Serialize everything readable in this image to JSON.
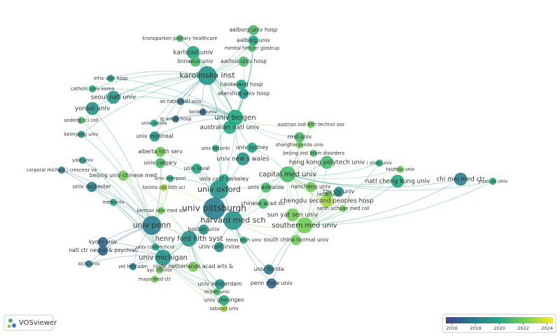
{
  "nodes": [
    {
      "label": "karolinska inst",
      "year": 2019,
      "size": 5
    },
    {
      "label": "univ bergen",
      "year": 2020,
      "size": 4
    },
    {
      "label": "australian natl univ",
      "year": 2020,
      "size": 3
    },
    {
      "label": "univ oxford",
      "year": 2019,
      "size": 5
    },
    {
      "label": "univ pittsburgh",
      "year": 2018,
      "size": 6
    },
    {
      "label": "harvard med sch",
      "year": 2019,
      "size": 5
    },
    {
      "label": "univ penn",
      "year": 2018,
      "size": 5
    },
    {
      "label": "henry ford hlth syst",
      "year": 2019,
      "size": 4
    },
    {
      "label": "univ michigan",
      "year": 2019,
      "size": 4
    },
    {
      "label": "capital med univ",
      "year": 2021,
      "size": 4
    },
    {
      "label": "hong kong polytech univ",
      "year": 2021,
      "size": 3
    },
    {
      "label": "chengdu second peoples hosp",
      "year": 2023,
      "size": 3
    },
    {
      "label": "southern med univ",
      "year": 2022,
      "size": 4
    },
    {
      "label": "sun yat sen univ",
      "year": 2022,
      "size": 3
    },
    {
      "label": "south china normal univ",
      "year": 2022,
      "size": 2
    },
    {
      "label": "natl cheng kung univ",
      "year": 2020,
      "size": 3
    },
    {
      "label": "chi mei med ctr",
      "year": 2018,
      "size": 3
    },
    {
      "label": "karlstad univ",
      "year": 2020,
      "size": 3
    },
    {
      "label": "linnaeus univ",
      "year": 2021,
      "size": 2
    },
    {
      "label": "aalborg univ hosp",
      "year": 2021,
      "size": 2
    },
    {
      "label": "aalborg univ",
      "year": 2020,
      "size": 2
    },
    {
      "label": "mental hlth ctr glostrup",
      "year": 2021,
      "size": 1
    },
    {
      "label": "aarhus univ hosp",
      "year": 2021,
      "size": 2
    },
    {
      "label": "kronoparken primary healthcare",
      "year": 2021,
      "size": 1
    },
    {
      "label": "haukeland hosp",
      "year": 2020,
      "size": 2
    },
    {
      "label": "akershus univ hosp",
      "year": 2019,
      "size": 2
    },
    {
      "label": "seoul natl univ",
      "year": 2019,
      "size": 3
    },
    {
      "label": "inha univ hosp",
      "year": 2019,
      "size": 1
    },
    {
      "label": "catholic univ korea",
      "year": 2020,
      "size": 1
    },
    {
      "label": "yonsei univ",
      "year": 2019,
      "size": 3
    },
    {
      "label": "andong sci coll",
      "year": 2021,
      "size": 1
    },
    {
      "label": "keimyung univ",
      "year": 2019,
      "size": 1
    },
    {
      "label": "univ montreal",
      "year": 2019,
      "size": 2
    },
    {
      "label": "univ aquila",
      "year": 2020,
      "size": 1
    },
    {
      "label": "konkuk univ",
      "year": 2017,
      "size": 1
    },
    {
      "label": "an najah natl univ",
      "year": 2017,
      "size": 1
    },
    {
      "label": "st anton hosp",
      "year": 2017,
      "size": 1
    },
    {
      "label": "alberta hlth serv",
      "year": 2022,
      "size": 2
    },
    {
      "label": "univ calgary",
      "year": 2021,
      "size": 2
    },
    {
      "label": "univ laval",
      "year": 2020,
      "size": 2
    },
    {
      "label": "fatima coll hlth sci",
      "year": 2023,
      "size": 1
    },
    {
      "label": "univ liverpool",
      "year": 2020,
      "size": 1
    },
    {
      "label": "beijing univ chinese med",
      "year": 2022,
      "size": 2
    },
    {
      "label": "yale univ",
      "year": 2019,
      "size": 1
    },
    {
      "label": "corporal michael j crescenz va",
      "year": 2018,
      "size": 1
    },
    {
      "label": "univ rochester",
      "year": 2018,
      "size": 2
    },
    {
      "label": "memuniv",
      "year": 2020,
      "size": 1
    },
    {
      "label": "kerman univ med sci",
      "year": 2022,
      "size": 1
    },
    {
      "label": "univ new s wales",
      "year": 2019,
      "size": 3
    },
    {
      "label": "univ calif berkeley",
      "year": 2020,
      "size": 2
    },
    {
      "label": "univ helsinki",
      "year": 2020,
      "size": 1
    },
    {
      "label": "univ sydney",
      "year": 2020,
      "size": 2
    },
    {
      "label": "univ adelaide",
      "year": 2021,
      "size": 2
    },
    {
      "label": "rmit univ",
      "year": 2021,
      "size": 2
    },
    {
      "label": "shanghai sanda univ",
      "year": 2022,
      "size": 1
    },
    {
      "label": "beijing inst brain disorders",
      "year": 2021,
      "size": 1
    },
    {
      "label": "austrian inst hlth technol ass",
      "year": 2022,
      "size": 1
    },
    {
      "label": "hebei univ",
      "year": 2022,
      "size": 1
    },
    {
      "label": "nanchang univ",
      "year": 2022,
      "size": 2
    },
    {
      "label": "tzu chi univ",
      "year": 2019,
      "size": 2
    },
    {
      "label": "i shou univ",
      "year": 2020,
      "size": 1
    },
    {
      "label": "taizhou univ",
      "year": 2022,
      "size": 1
    },
    {
      "label": "yuan ze univ",
      "year": 2020,
      "size": 1
    },
    {
      "label": "chinese acad sci",
      "year": 2021,
      "size": 2
    },
    {
      "label": "north sichuan med coll",
      "year": 2022,
      "size": 1
    },
    {
      "label": "boston univ",
      "year": 2019,
      "size": 2
    },
    {
      "label": "texas tech univ",
      "year": 2020,
      "size": 1
    },
    {
      "label": "univ calif irvine",
      "year": 2019,
      "size": 2
    },
    {
      "label": "univ connecticut",
      "year": 2020,
      "size": 1
    },
    {
      "label": "univ florida",
      "year": 2018,
      "size": 2
    },
    {
      "label": "penn state univ",
      "year": 2017,
      "size": 2
    },
    {
      "label": "univ amsterdam",
      "year": 2019,
      "size": 2
    },
    {
      "label": "leiden univ",
      "year": 2021,
      "size": 1
    },
    {
      "label": "univ groningen",
      "year": 2020,
      "size": 2
    },
    {
      "label": "sabanci univ",
      "year": 2023,
      "size": 1
    },
    {
      "label": "royal netherlands acad arts &",
      "year": 2022,
      "size": 2
    },
    {
      "label": "syc infinite",
      "year": 2022,
      "size": 1
    },
    {
      "label": "vet hlth adm",
      "year": 2018,
      "size": 1
    },
    {
      "label": "mayo med ctr",
      "year": 2022,
      "size": 1
    },
    {
      "label": "kyoto univ",
      "year": 2017,
      "size": 2
    },
    {
      "label": "natl ctr neurol & psychiat",
      "year": 2017,
      "size": 2
    },
    {
      "label": "aichi univ",
      "year": 2018,
      "size": 1
    }
  ],
  "colorbar": {
    "range": [
      2015.5,
      2024.5
    ],
    "ticks": [
      2016,
      2018,
      2020,
      2022,
      2024
    ]
  },
  "brand": "VOSviewer"
}
